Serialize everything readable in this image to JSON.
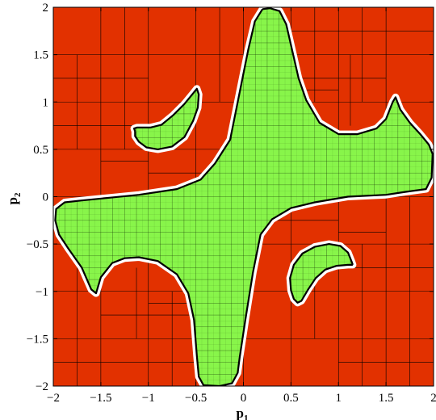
{
  "chart_data": {
    "type": "region-map",
    "xlabel": {
      "main": "p",
      "sub": "1"
    },
    "ylabel": {
      "main": "p",
      "sub": "2"
    },
    "xlim": [
      -2,
      2
    ],
    "ylim": [
      -2,
      2
    ],
    "xticks": [
      -2,
      -1.5,
      -1,
      -0.5,
      0,
      0.5,
      1,
      1.5,
      2
    ],
    "yticks": [
      -2,
      -1.5,
      -1,
      -0.5,
      0,
      0.5,
      1,
      1.5,
      2
    ],
    "xtick_labels": [
      "−2",
      "−1.5",
      "−1",
      "−0.5",
      "0",
      "0.5",
      "1",
      "1.5",
      "2"
    ],
    "ytick_labels": [
      "−2",
      "−1.5",
      "−1",
      "−0.5",
      "0",
      "0.5",
      "1",
      "1.5",
      "2"
    ],
    "colors": {
      "outside": "#e23100",
      "inside": "#88f54a",
      "boundary": "#000000",
      "grid_line": "#000000"
    },
    "regions": {
      "main": [
        [
          0.2,
          1.98
        ],
        [
          0.28,
          1.99
        ],
        [
          0.38,
          1.96
        ],
        [
          0.45,
          1.82
        ],
        [
          0.5,
          1.6
        ],
        [
          0.58,
          1.25
        ],
        [
          0.66,
          1.02
        ],
        [
          0.8,
          0.78
        ],
        [
          1.0,
          0.66
        ],
        [
          1.2,
          0.66
        ],
        [
          1.4,
          0.72
        ],
        [
          1.5,
          0.82
        ],
        [
          1.57,
          1.0
        ],
        [
          1.6,
          1.05
        ],
        [
          1.65,
          0.92
        ],
        [
          1.75,
          0.78
        ],
        [
          1.86,
          0.66
        ],
        [
          1.95,
          0.55
        ],
        [
          1.99,
          0.45
        ],
        [
          1.98,
          0.2
        ],
        [
          1.92,
          0.08
        ],
        [
          1.7,
          0.05
        ],
        [
          1.5,
          0.02
        ],
        [
          1.1,
          0.0
        ],
        [
          0.75,
          -0.06
        ],
        [
          0.5,
          -0.12
        ],
        [
          0.3,
          -0.24
        ],
        [
          0.18,
          -0.4
        ],
        [
          0.1,
          -0.8
        ],
        [
          0.02,
          -1.3
        ],
        [
          -0.04,
          -1.7
        ],
        [
          -0.06,
          -1.86
        ],
        [
          -0.12,
          -1.97
        ],
        [
          -0.25,
          -2.0
        ],
        [
          -0.42,
          -1.99
        ],
        [
          -0.47,
          -1.9
        ],
        [
          -0.49,
          -1.68
        ],
        [
          -0.52,
          -1.3
        ],
        [
          -0.58,
          -1.02
        ],
        [
          -0.7,
          -0.82
        ],
        [
          -0.9,
          -0.68
        ],
        [
          -1.1,
          -0.64
        ],
        [
          -1.25,
          -0.65
        ],
        [
          -1.38,
          -0.7
        ],
        [
          -1.5,
          -0.85
        ],
        [
          -1.55,
          -1.02
        ],
        [
          -1.6,
          -0.98
        ],
        [
          -1.7,
          -0.75
        ],
        [
          -1.84,
          -0.55
        ],
        [
          -1.94,
          -0.4
        ],
        [
          -1.98,
          -0.25
        ],
        [
          -1.97,
          -0.13
        ],
        [
          -1.88,
          -0.06
        ],
        [
          -1.7,
          -0.04
        ],
        [
          -1.4,
          -0.01
        ],
        [
          -1.1,
          0.02
        ],
        [
          -0.7,
          0.08
        ],
        [
          -0.45,
          0.18
        ],
        [
          -0.3,
          0.35
        ],
        [
          -0.14,
          0.6
        ],
        [
          -0.05,
          1.05
        ],
        [
          0.05,
          1.55
        ],
        [
          0.12,
          1.85
        ],
        [
          0.2,
          1.98
        ]
      ],
      "upper_left_lobe": [
        [
          -1.14,
          0.69
        ],
        [
          -1.15,
          0.72
        ],
        [
          -1.12,
          0.73
        ],
        [
          -0.98,
          0.73
        ],
        [
          -0.86,
          0.76
        ],
        [
          -0.74,
          0.86
        ],
        [
          -0.62,
          0.98
        ],
        [
          -0.53,
          1.09
        ],
        [
          -0.49,
          1.14
        ],
        [
          -0.47,
          1.08
        ],
        [
          -0.48,
          0.94
        ],
        [
          -0.53,
          0.8
        ],
        [
          -0.62,
          0.63
        ],
        [
          -0.75,
          0.53
        ],
        [
          -0.9,
          0.5
        ],
        [
          -1.02,
          0.52
        ],
        [
          -1.1,
          0.58
        ],
        [
          -1.14,
          0.64
        ],
        [
          -1.14,
          0.69
        ]
      ],
      "lower_right_lobe": [
        [
          1.15,
          -0.72
        ],
        [
          1.14,
          -0.69
        ],
        [
          1.1,
          -0.59
        ],
        [
          1.02,
          -0.52
        ],
        [
          0.9,
          -0.5
        ],
        [
          0.75,
          -0.53
        ],
        [
          0.62,
          -0.6
        ],
        [
          0.53,
          -0.72
        ],
        [
          0.49,
          -0.86
        ],
        [
          0.5,
          -0.99
        ],
        [
          0.53,
          -1.08
        ],
        [
          0.57,
          -1.12
        ],
        [
          0.61,
          -1.1
        ],
        [
          0.68,
          -0.98
        ],
        [
          0.76,
          -0.86
        ],
        [
          0.86,
          -0.77
        ],
        [
          0.98,
          -0.73
        ],
        [
          1.1,
          -0.72
        ],
        [
          1.15,
          -0.72
        ]
      ]
    },
    "subdivision_lines": {
      "vertical": [
        [
          -1.5,
          -2,
          2
        ],
        [
          -1,
          -2,
          2
        ],
        [
          -0.5,
          -2,
          2
        ],
        [
          0,
          -2,
          2
        ],
        [
          0.5,
          -2,
          2
        ],
        [
          1,
          -2,
          2
        ],
        [
          1.5,
          -2,
          2
        ],
        [
          -1.75,
          -2,
          -0.75
        ],
        [
          -1.25,
          0.5,
          2
        ],
        [
          -0.75,
          -2,
          -1
        ],
        [
          -0.25,
          -2,
          -0.5
        ],
        [
          0.25,
          0.5,
          2
        ],
        [
          0.75,
          1,
          2
        ],
        [
          1.25,
          -2,
          -0.5
        ],
        [
          1.75,
          -2,
          0
        ],
        [
          -1.75,
          0.5,
          1.5
        ],
        [
          0.75,
          -1.5,
          -0.5
        ],
        [
          -0.25,
          1,
          2
        ],
        [
          1.25,
          1,
          2
        ],
        [
          -1.125,
          -1.5,
          -0.75
        ],
        [
          1.125,
          0.75,
          1.5
        ],
        [
          -0.125,
          -1.5,
          -0.5
        ],
        [
          0.125,
          0.5,
          1.5
        ],
        [
          -1.375,
          -0.5,
          0
        ],
        [
          1.375,
          0,
          0.5
        ]
      ],
      "horizontal": [
        [
          -1.5,
          -2,
          2
        ],
        [
          -1,
          -2,
          2
        ],
        [
          -0.5,
          -2,
          2
        ],
        [
          0,
          -2,
          2
        ],
        [
          0.5,
          -2,
          2
        ],
        [
          1,
          -2,
          2
        ],
        [
          1.5,
          -2,
          2
        ],
        [
          -1.75,
          -2,
          -0.5
        ],
        [
          1.75,
          0.5,
          2
        ],
        [
          -1.25,
          -1.5,
          0
        ],
        [
          1.25,
          0,
          1.5
        ],
        [
          0.75,
          -2,
          -0.75
        ],
        [
          -0.75,
          0.75,
          2
        ],
        [
          0.25,
          -1,
          0
        ],
        [
          -0.25,
          0,
          1
        ],
        [
          1.25,
          -2,
          -1
        ],
        [
          -1.75,
          1,
          2
        ],
        [
          -0.25,
          -1.5,
          -1
        ],
        [
          0.25,
          1,
          1.5
        ],
        [
          -1.125,
          -1,
          -0.5
        ],
        [
          1.125,
          0.5,
          1
        ],
        [
          0.125,
          -0.5,
          0
        ],
        [
          -0.125,
          0,
          0.5
        ],
        [
          0.375,
          -1.5,
          -1
        ],
        [
          -0.375,
          1,
          1.5
        ],
        [
          -0.625,
          -0.5,
          0
        ],
        [
          0.625,
          0,
          0.5
        ]
      ]
    }
  }
}
